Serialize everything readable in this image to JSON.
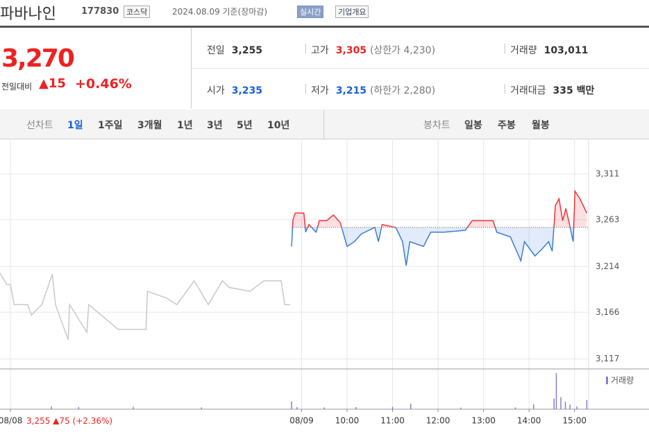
{
  "header": {
    "name": "파바나인",
    "code": "177830",
    "market": "코스닥",
    "date": "2024.08.09 기준(장마감)",
    "realtime": "실시간",
    "company_info": "기업개요"
  },
  "summary": {
    "price": "3,270",
    "change_label": "전일대비",
    "change": "15",
    "rate": "+0.46%",
    "rows": [
      [
        {
          "label": "전일",
          "value": "3,255"
        },
        {
          "label": "고가",
          "value": "3,305",
          "extra": "(상한가 4,230)"
        },
        {
          "label": "거래량",
          "value": "103,011"
        }
      ],
      [
        {
          "label": "시가",
          "value": "3,235"
        },
        {
          "label": "저가",
          "value": "3,215",
          "extra": "(하한가 2,280)"
        },
        {
          "label": "거래대금",
          "value": "335 백만"
        }
      ]
    ]
  },
  "tabs": {
    "line_label": "선차트",
    "line": [
      "1일",
      "1주일",
      "3개월",
      "1년",
      "3년",
      "5년",
      "10년"
    ],
    "candle_label": "봉차트",
    "candle": [
      "일봉",
      "주봉",
      "월봉"
    ]
  },
  "prev_day_info": {
    "date": "08/08",
    "close": "3,255",
    "change": "75",
    "rate": "(+2.36%)"
  },
  "chart_data": {
    "type": "line",
    "baseline": 3255,
    "xlim": [
      2.37,
      15.31
    ],
    "ylim": [
      3108,
      3348
    ],
    "xticks": [
      {
        "value": 2.6,
        "label": "08/08"
      },
      {
        "value": 9,
        "label": "08/09"
      },
      {
        "value": 10,
        "label": "10:00"
      },
      {
        "value": 11,
        "label": "11:00"
      },
      {
        "value": 12,
        "label": "12:00"
      },
      {
        "value": 13,
        "label": "13:00"
      },
      {
        "value": 14,
        "label": "14:00"
      },
      {
        "value": 15,
        "label": "15:00"
      }
    ],
    "yticks": [
      {
        "value": 3311,
        "label": "3,311"
      },
      {
        "value": 3263,
        "label": "3,263"
      },
      {
        "value": 3214,
        "label": "3,214"
      },
      {
        "value": 3166,
        "label": "3,166"
      },
      {
        "value": 3117,
        "label": "3,117"
      }
    ],
    "grid": true,
    "series": [
      {
        "color": "#c8c8c8",
        "x": [
          2.37,
          2.52,
          2.6,
          2.68,
          2.98,
          3.06,
          3.29,
          3.52,
          3.59,
          3.87,
          3.9,
          4.28,
          4.32,
          4.97,
          5.58,
          5.61,
          6.03,
          6.26,
          6.64,
          6.95,
          7.26,
          7.41,
          7.87,
          8.17,
          8.55,
          8.63,
          8.75
        ],
        "values": [
          3207,
          3195,
          3195,
          3174,
          3174,
          3163,
          3174,
          3206,
          3174,
          3137,
          3174,
          3145,
          3174,
          3148,
          3148,
          3188,
          3181,
          3174,
          3199,
          3174,
          3199,
          3192,
          3188,
          3199,
          3199,
          3174,
          3174
        ]
      },
      {
        "color": "#3a7bd5",
        "up_color": "#f0343a",
        "x": [
          8.78,
          8.81,
          8.86,
          9.05,
          9.09,
          9.16,
          9.32,
          9.39,
          9.55,
          9.7,
          9.85,
          10.0,
          10.16,
          10.31,
          10.61,
          10.69,
          10.77,
          11.07,
          11.22,
          11.3,
          11.38,
          11.68,
          11.84,
          12.14,
          12.6,
          12.75,
          13.21,
          13.29,
          13.59,
          13.82,
          13.9,
          14.13,
          14.28,
          14.43,
          14.51,
          14.58,
          14.66,
          14.74,
          14.81,
          14.89,
          14.97,
          15.01,
          15.12,
          15.27
        ],
        "values": [
          3235,
          3263,
          3270,
          3270,
          3250,
          3258,
          3250,
          3262,
          3262,
          3268,
          3260,
          3235,
          3240,
          3248,
          3255,
          3240,
          3258,
          3255,
          3240,
          3215,
          3240,
          3235,
          3250,
          3250,
          3252,
          3262,
          3262,
          3250,
          3245,
          3220,
          3240,
          3225,
          3232,
          3240,
          3230,
          3278,
          3285,
          3262,
          3275,
          3258,
          3240,
          3293,
          3285,
          3270
        ]
      }
    ],
    "volume": {
      "label": "거래량",
      "color": "#8c7cc8",
      "x": [
        3.5,
        4.1,
        5.3,
        6.8,
        8.78,
        8.9,
        9.5,
        10.2,
        11.0,
        11.4,
        12.5,
        13.7,
        14.1,
        14.55,
        14.6,
        14.7,
        14.8,
        14.9,
        15.05,
        15.27
      ],
      "values": [
        900,
        700,
        800,
        600,
        2600,
        700,
        600,
        700,
        800,
        1800,
        500,
        600,
        1600,
        3500,
        12000,
        4000,
        2500,
        1500,
        900,
        3000
      ]
    }
  }
}
